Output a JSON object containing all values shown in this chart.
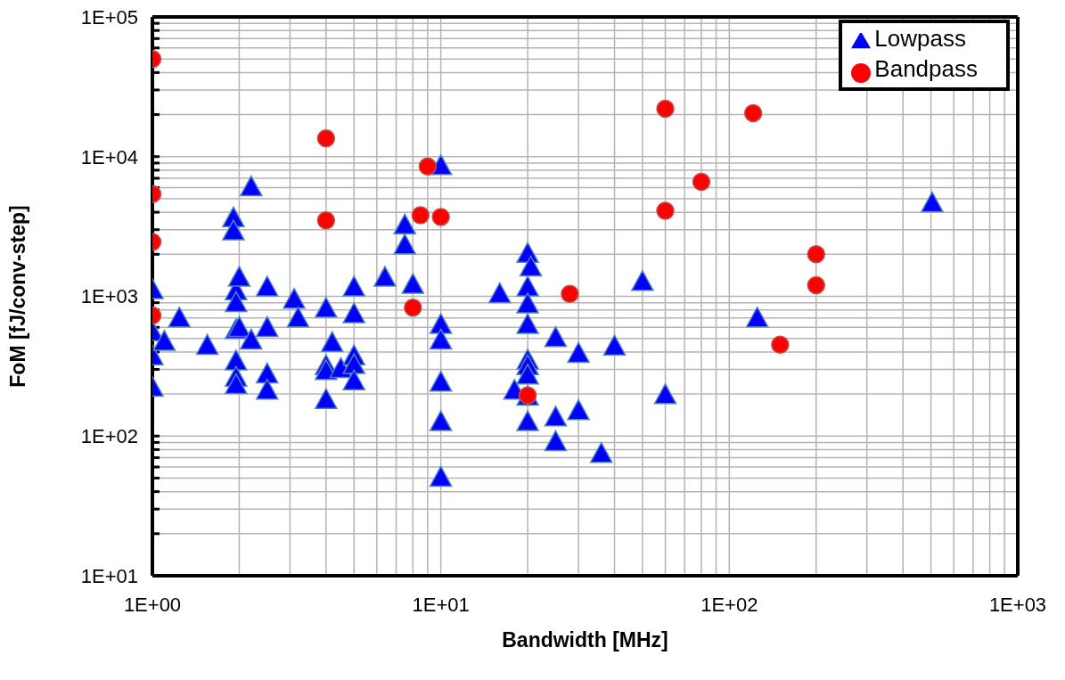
{
  "chart_data": {
    "type": "scatter",
    "xlabel": "Bandwidth [MHz]",
    "ylabel": "FoM [fJ/conv-step]",
    "log": "xy",
    "grid": true,
    "legend": "top right",
    "xlim": [
      1,
      1000
    ],
    "ylim": [
      10,
      100000
    ],
    "xticks": [
      {
        "value": 1,
        "label": "1E+00"
      },
      {
        "value": 2,
        "label": null
      },
      {
        "value": 3,
        "label": null
      },
      {
        "value": 4,
        "label": null
      },
      {
        "value": 5,
        "label": null
      },
      {
        "value": 6,
        "label": null
      },
      {
        "value": 7,
        "label": null
      },
      {
        "value": 8,
        "label": null
      },
      {
        "value": 9,
        "label": null
      },
      {
        "value": 10,
        "label": "1E+01"
      },
      {
        "value": 20,
        "label": null
      },
      {
        "value": 30,
        "label": null
      },
      {
        "value": 40,
        "label": null
      },
      {
        "value": 50,
        "label": null
      },
      {
        "value": 60,
        "label": null
      },
      {
        "value": 70,
        "label": null
      },
      {
        "value": 80,
        "label": null
      },
      {
        "value": 90,
        "label": null
      },
      {
        "value": 100,
        "label": "1E+02"
      },
      {
        "value": 200,
        "label": null
      },
      {
        "value": 300,
        "label": null
      },
      {
        "value": 400,
        "label": null
      },
      {
        "value": 500,
        "label": null
      },
      {
        "value": 600,
        "label": null
      },
      {
        "value": 700,
        "label": null
      },
      {
        "value": 800,
        "label": null
      },
      {
        "value": 900,
        "label": null
      },
      {
        "value": 1000,
        "label": "1E+03"
      }
    ],
    "yticks": [
      {
        "value": 10,
        "label": "1E+01"
      },
      {
        "value": 20,
        "label": null
      },
      {
        "value": 30,
        "label": null
      },
      {
        "value": 40,
        "label": null
      },
      {
        "value": 50,
        "label": null
      },
      {
        "value": 60,
        "label": null
      },
      {
        "value": 70,
        "label": null
      },
      {
        "value": 80,
        "label": null
      },
      {
        "value": 90,
        "label": null
      },
      {
        "value": 100,
        "label": "1E+02"
      },
      {
        "value": 200,
        "label": null
      },
      {
        "value": 300,
        "label": null
      },
      {
        "value": 400,
        "label": null
      },
      {
        "value": 500,
        "label": null
      },
      {
        "value": 600,
        "label": null
      },
      {
        "value": 700,
        "label": null
      },
      {
        "value": 800,
        "label": null
      },
      {
        "value": 900,
        "label": null
      },
      {
        "value": 1000,
        "label": "1E+03"
      },
      {
        "value": 2000,
        "label": null
      },
      {
        "value": 3000,
        "label": null
      },
      {
        "value": 4000,
        "label": null
      },
      {
        "value": 5000,
        "label": null
      },
      {
        "value": 6000,
        "label": null
      },
      {
        "value": 7000,
        "label": null
      },
      {
        "value": 8000,
        "label": null
      },
      {
        "value": 9000,
        "label": null
      },
      {
        "value": 10000,
        "label": "1E+04"
      },
      {
        "value": 20000,
        "label": null
      },
      {
        "value": 30000,
        "label": null
      },
      {
        "value": 40000,
        "label": null
      },
      {
        "value": 50000,
        "label": null
      },
      {
        "value": 60000,
        "label": null
      },
      {
        "value": 70000,
        "label": null
      },
      {
        "value": 80000,
        "label": null
      },
      {
        "value": 90000,
        "label": null
      },
      {
        "value": 100000,
        "label": "1E+05"
      }
    ],
    "series": [
      {
        "name": "Lowpass",
        "color": "#0000ff",
        "marker": "triangle",
        "x": [
          1,
          1,
          1,
          1,
          1.1,
          1.24,
          1.55,
          1.91,
          1.91,
          1.95,
          1.95,
          1.95,
          2,
          2,
          1.95,
          1.95,
          1.95,
          2.2,
          2.2,
          2.5,
          2.5,
          2.5,
          2.5,
          3.1,
          3.2,
          4,
          4,
          4,
          4,
          4.2,
          4.5,
          5,
          5,
          5,
          5,
          5,
          6.4,
          7.5,
          7.5,
          8,
          10,
          10,
          10,
          10,
          10,
          10,
          16,
          18,
          20,
          20.5,
          20,
          20,
          20,
          20,
          20,
          20,
          20,
          20,
          25,
          25,
          25,
          30,
          30,
          36,
          40,
          50,
          60,
          125,
          505
        ],
        "values": [
          1100,
          550,
          370,
          220,
          470,
          690,
          440,
          3600,
          2900,
          1080,
          890,
          570,
          590,
          1350,
          340,
          260,
          230,
          6000,
          480,
          1150,
          590,
          275,
          210,
          940,
          690,
          810,
          315,
          290,
          180,
          460,
          300,
          1150,
          740,
          370,
          320,
          245,
          1350,
          3200,
          2300,
          1200,
          8500,
          620,
          480,
          240,
          125,
          50,
          1030,
          210,
          2000,
          1600,
          1150,
          870,
          620,
          345,
          315,
          270,
          190,
          125,
          500,
          135,
          90,
          385,
          150,
          74,
          435,
          1260,
          195,
          690,
          4600
        ]
      },
      {
        "name": "Bandpass",
        "color": "#ff0000",
        "marker": "circle",
        "x": [
          1,
          1,
          1,
          1,
          4,
          4,
          8,
          8.5,
          9,
          10,
          20,
          28,
          60,
          60,
          80,
          121,
          150,
          200,
          200
        ],
        "values": [
          50000,
          5400,
          2450,
          730,
          13500,
          3500,
          830,
          3800,
          8500,
          3700,
          195,
          1040,
          22000,
          4100,
          6600,
          20500,
          450,
          2000,
          1200
        ]
      }
    ]
  }
}
